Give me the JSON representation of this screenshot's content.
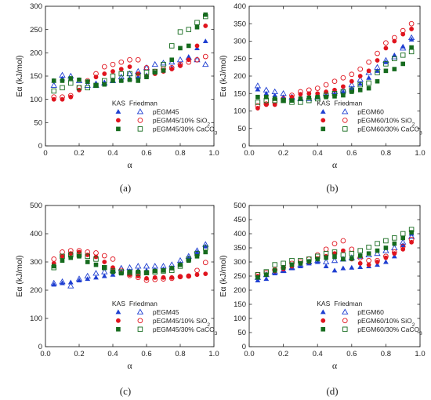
{
  "chart_data": [
    {
      "type": "scatter",
      "panel_label": "(a)",
      "xlabel": "α",
      "ylabel": "Eα (kJ/mol)",
      "xlim": [
        0,
        1.0
      ],
      "ylim": [
        0,
        300
      ],
      "xticks": [
        "0",
        "0.2",
        "0.4",
        "0.6",
        "0.8",
        "1.0"
      ],
      "yticks": [
        "0",
        "50",
        "100",
        "150",
        "200",
        "250",
        "300"
      ],
      "xtick_values": [
        0,
        0.2,
        0.4,
        0.6,
        0.8,
        1.0
      ],
      "ytick_values": [
        0,
        50,
        100,
        150,
        200,
        250,
        300
      ],
      "legend_headers": [
        "KAS",
        "Friedman"
      ],
      "legend_position": "bottom-right",
      "x": [
        0.05,
        0.1,
        0.15,
        0.2,
        0.25,
        0.3,
        0.35,
        0.4,
        0.45,
        0.5,
        0.55,
        0.6,
        0.65,
        0.7,
        0.75,
        0.8,
        0.85,
        0.9,
        0.95
      ],
      "series": [
        {
          "name": "pEGM45",
          "method": "KAS",
          "color": "#1f3fd1",
          "marker": "triangle",
          "filled": true,
          "values": [
            140,
            145,
            145,
            142,
            138,
            135,
            137,
            140,
            143,
            145,
            148,
            152,
            158,
            162,
            168,
            175,
            190,
            210,
            225
          ]
        },
        {
          "name": "pEGM45",
          "method": "Friedman",
          "color": "#1f3fd1",
          "marker": "triangle",
          "filled": false,
          "values": [
            130,
            152,
            150,
            140,
            130,
            130,
            135,
            140,
            148,
            155,
            160,
            168,
            175,
            178,
            180,
            185,
            190,
            185,
            175
          ]
        },
        {
          "name": "pEGM45/10% SiO2",
          "method": "KAS",
          "color": "#e0141e",
          "marker": "circle",
          "filled": true,
          "values": [
            100,
            100,
            105,
            120,
            138,
            148,
            155,
            160,
            165,
            170,
            155,
            150,
            155,
            160,
            165,
            172,
            185,
            215,
            258
          ]
        },
        {
          "name": "pEGM45/10% SiO2",
          "method": "Friedman",
          "color": "#e0141e",
          "marker": "circle",
          "filled": false,
          "values": [
            105,
            105,
            108,
            125,
            140,
            155,
            170,
            175,
            180,
            185,
            185,
            168,
            160,
            165,
            168,
            175,
            180,
            185,
            192
          ]
        },
        {
          "name": "pEGM45/30% CaCO3",
          "method": "KAS",
          "color": "#166b1e",
          "marker": "square",
          "filled": true,
          "values": [
            140,
            140,
            145,
            142,
            138,
            130,
            132,
            140,
            140,
            142,
            140,
            148,
            158,
            162,
            185,
            210,
            215,
            255,
            282
          ]
        },
        {
          "name": "pEGM45/30% CaCO3",
          "method": "Friedman",
          "color": "#166b1e",
          "marker": "square",
          "filled": false,
          "values": [
            118,
            125,
            135,
            125,
            125,
            130,
            140,
            150,
            155,
            155,
            150,
            158,
            160,
            175,
            215,
            245,
            250,
            265,
            278
          ]
        }
      ]
    },
    {
      "type": "scatter",
      "panel_label": "(b)",
      "xlabel": "α",
      "ylabel": "Eα (kJ/mol)",
      "xlim": [
        0,
        1.0
      ],
      "ylim": [
        0,
        400
      ],
      "xticks": [
        "0.0",
        "0.2",
        "0.4",
        "0.6",
        "0.8",
        "1.0"
      ],
      "yticks": [
        "0",
        "50",
        "100",
        "150",
        "200",
        "250",
        "300",
        "350",
        "400"
      ],
      "xtick_values": [
        0,
        0.2,
        0.4,
        0.6,
        0.8,
        1.0
      ],
      "ytick_values": [
        0,
        50,
        100,
        150,
        200,
        250,
        300,
        350,
        400
      ],
      "legend_headers": [
        "KAS",
        "Friedman"
      ],
      "legend_position": "bottom-right",
      "x": [
        0.05,
        0.1,
        0.15,
        0.2,
        0.25,
        0.3,
        0.35,
        0.4,
        0.45,
        0.5,
        0.55,
        0.6,
        0.65,
        0.7,
        0.75,
        0.8,
        0.85,
        0.9,
        0.95
      ],
      "series": [
        {
          "name": "pEGM60",
          "method": "KAS",
          "color": "#1f3fd1",
          "marker": "triangle",
          "filled": true,
          "values": [
            162,
            150,
            145,
            140,
            138,
            138,
            140,
            142,
            145,
            150,
            155,
            165,
            178,
            195,
            215,
            240,
            260,
            285,
            305
          ]
        },
        {
          "name": "pEGM60",
          "method": "Friedman",
          "color": "#1f3fd1",
          "marker": "triangle",
          "filled": false,
          "values": [
            172,
            160,
            155,
            150,
            140,
            135,
            135,
            140,
            150,
            155,
            160,
            175,
            190,
            210,
            225,
            245,
            255,
            280,
            310
          ]
        },
        {
          "name": "pEGM60/10% SiO2",
          "method": "KAS",
          "color": "#e0141e",
          "marker": "circle",
          "filled": true,
          "values": [
            108,
            118,
            118,
            130,
            140,
            148,
            150,
            150,
            155,
            160,
            170,
            185,
            200,
            215,
            245,
            280,
            300,
            320,
            335
          ]
        },
        {
          "name": "pEGM60/10% SiO2",
          "method": "Friedman",
          "color": "#e0141e",
          "marker": "circle",
          "filled": false,
          "values": [
            115,
            120,
            125,
            135,
            145,
            155,
            160,
            165,
            175,
            185,
            195,
            205,
            220,
            240,
            265,
            295,
            310,
            330,
            350
          ]
        },
        {
          "name": "pEGM60/30% CaCO3",
          "method": "KAS",
          "color": "#166b1e",
          "marker": "square",
          "filled": true,
          "values": [
            140,
            140,
            135,
            130,
            130,
            135,
            138,
            140,
            140,
            142,
            145,
            155,
            160,
            165,
            185,
            215,
            220,
            235,
            282
          ]
        },
        {
          "name": "pEGM60/30% CaCO3",
          "method": "Friedman",
          "color": "#166b1e",
          "marker": "square",
          "filled": false,
          "values": [
            125,
            130,
            130,
            130,
            125,
            125,
            130,
            135,
            145,
            150,
            155,
            160,
            175,
            180,
            210,
            235,
            250,
            260,
            270
          ]
        }
      ]
    },
    {
      "type": "scatter",
      "panel_label": "(c)",
      "xlabel": "α",
      "ylabel": "Eα (kJ/mol)",
      "xlim": [
        0,
        1.0
      ],
      "ylim": [
        0,
        500
      ],
      "xticks": [
        "0.0",
        "0.2",
        "0.4",
        "0.6",
        "0.8",
        "1.0"
      ],
      "yticks": [
        "0",
        "100",
        "200",
        "300",
        "400",
        "500"
      ],
      "xtick_values": [
        0,
        0.2,
        0.4,
        0.6,
        0.8,
        1.0
      ],
      "ytick_values": [
        0,
        100,
        200,
        300,
        400,
        500
      ],
      "legend_headers": [
        "KAS",
        "Friedman"
      ],
      "legend_position": "bottom-right",
      "x": [
        0.05,
        0.1,
        0.15,
        0.2,
        0.25,
        0.3,
        0.35,
        0.4,
        0.45,
        0.5,
        0.55,
        0.6,
        0.65,
        0.7,
        0.75,
        0.8,
        0.85,
        0.9,
        0.95
      ],
      "series": [
        {
          "name": "pEGM45",
          "method": "KAS",
          "color": "#1f3fd1",
          "marker": "triangle",
          "filled": true,
          "values": [
            220,
            225,
            228,
            235,
            240,
            245,
            250,
            255,
            262,
            268,
            270,
            270,
            272,
            275,
            280,
            295,
            315,
            335,
            355
          ]
        },
        {
          "name": "pEGM45",
          "method": "Friedman",
          "color": "#1f3fd1",
          "marker": "triangle",
          "filled": false,
          "values": [
            225,
            230,
            215,
            240,
            250,
            260,
            265,
            270,
            278,
            280,
            285,
            285,
            285,
            285,
            290,
            305,
            320,
            340,
            362
          ]
        },
        {
          "name": "pEGM45/10% SiO2",
          "method": "KAS",
          "color": "#e0141e",
          "marker": "circle",
          "filled": true,
          "values": [
            295,
            320,
            330,
            335,
            325,
            318,
            300,
            280,
            262,
            255,
            250,
            242,
            245,
            245,
            245,
            248,
            250,
            255,
            258
          ]
        },
        {
          "name": "pEGM45/10% SiO2",
          "method": "Friedman",
          "color": "#e0141e",
          "marker": "circle",
          "filled": false,
          "values": [
            310,
            335,
            340,
            340,
            335,
            332,
            322,
            310,
            270,
            252,
            245,
            235,
            238,
            240,
            242,
            248,
            250,
            270,
            298
          ]
        },
        {
          "name": "pEGM45/30% CaCO3",
          "method": "KAS",
          "color": "#166b1e",
          "marker": "square",
          "filled": true,
          "values": [
            285,
            305,
            315,
            320,
            300,
            290,
            280,
            265,
            260,
            265,
            265,
            262,
            268,
            270,
            278,
            290,
            305,
            320,
            335
          ]
        },
        {
          "name": "pEGM45/30% CaCO3",
          "method": "Friedman",
          "color": "#166b1e",
          "marker": "square",
          "filled": false,
          "values": [
            280,
            320,
            325,
            325,
            320,
            310,
            280,
            268,
            265,
            262,
            260,
            262,
            265,
            268,
            270,
            285,
            310,
            330,
            350
          ]
        }
      ]
    },
    {
      "type": "scatter",
      "panel_label": "(d)",
      "xlabel": "α",
      "ylabel": "Eα (kJ/mol)",
      "xlim": [
        0,
        1.0
      ],
      "ylim": [
        0,
        500
      ],
      "xticks": [
        "0.0",
        "0.2",
        "0.4",
        "0.6",
        "0.8",
        "1.0"
      ],
      "yticks": [
        "0",
        "50",
        "100",
        "150",
        "200",
        "250",
        "300",
        "350",
        "400",
        "450",
        "500"
      ],
      "xtick_values": [
        0,
        0.2,
        0.4,
        0.6,
        0.8,
        1.0
      ],
      "ytick_values": [
        0,
        50,
        100,
        150,
        200,
        250,
        300,
        350,
        400,
        450,
        500
      ],
      "legend_headers": [
        "KAS",
        "Friedman"
      ],
      "legend_position": "bottom-right",
      "x": [
        0.05,
        0.1,
        0.15,
        0.2,
        0.25,
        0.3,
        0.35,
        0.4,
        0.45,
        0.5,
        0.55,
        0.6,
        0.65,
        0.7,
        0.75,
        0.8,
        0.85,
        0.9,
        0.95
      ],
      "series": [
        {
          "name": "pEGM60",
          "method": "KAS",
          "color": "#1f3fd1",
          "marker": "triangle",
          "filled": true,
          "values": [
            235,
            240,
            260,
            268,
            278,
            285,
            295,
            300,
            285,
            270,
            278,
            280,
            282,
            285,
            290,
            300,
            320,
            360,
            400
          ]
        },
        {
          "name": "pEGM60",
          "method": "Friedman",
          "color": "#1f3fd1",
          "marker": "triangle",
          "filled": false,
          "values": [
            245,
            255,
            265,
            270,
            280,
            290,
            300,
            305,
            300,
            305,
            310,
            315,
            320,
            325,
            330,
            340,
            350,
            370,
            390
          ]
        },
        {
          "name": "pEGM60/10% SiO2",
          "method": "KAS",
          "color": "#e0141e",
          "marker": "circle",
          "filled": true,
          "values": [
            250,
            255,
            268,
            275,
            285,
            295,
            300,
            312,
            320,
            330,
            340,
            310,
            295,
            290,
            300,
            315,
            330,
            345,
            370
          ]
        },
        {
          "name": "pEGM60/10% SiO2",
          "method": "Friedman",
          "color": "#e0141e",
          "marker": "circle",
          "filled": false,
          "values": [
            255,
            262,
            272,
            280,
            295,
            300,
            310,
            325,
            345,
            365,
            375,
            345,
            315,
            305,
            305,
            320,
            335,
            355,
            380
          ]
        },
        {
          "name": "pEGM60/30% CaCO3",
          "method": "KAS",
          "color": "#166b1e",
          "marker": "square",
          "filled": true,
          "values": [
            245,
            255,
            270,
            280,
            290,
            295,
            302,
            310,
            315,
            318,
            310,
            312,
            322,
            330,
            340,
            350,
            365,
            385,
            405
          ]
        },
        {
          "name": "pEGM60/30% CaCO3",
          "method": "Friedman",
          "color": "#166b1e",
          "marker": "square",
          "filled": false,
          "values": [
            255,
            265,
            290,
            295,
            305,
            305,
            310,
            320,
            330,
            335,
            325,
            330,
            340,
            352,
            365,
            375,
            385,
            400,
            415
          ]
        }
      ]
    }
  ]
}
